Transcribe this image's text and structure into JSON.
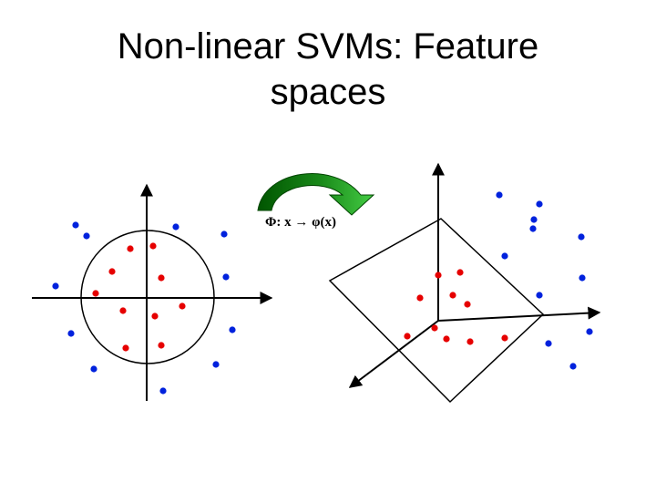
{
  "slide": {
    "title_line1": "Non-linear SVMs:  Feature",
    "title_line2": "spaces"
  },
  "mapping": {
    "label": "Φ:  x → φ(x)"
  },
  "colors": {
    "positive_class": "#e60000",
    "negative_class": "#0022dd",
    "arrow_dark": "#006600",
    "arrow_light": "#33bb33",
    "axes": "#000000"
  },
  "icons": {
    "mapping_arrow": "curved-arrow-icon"
  }
}
